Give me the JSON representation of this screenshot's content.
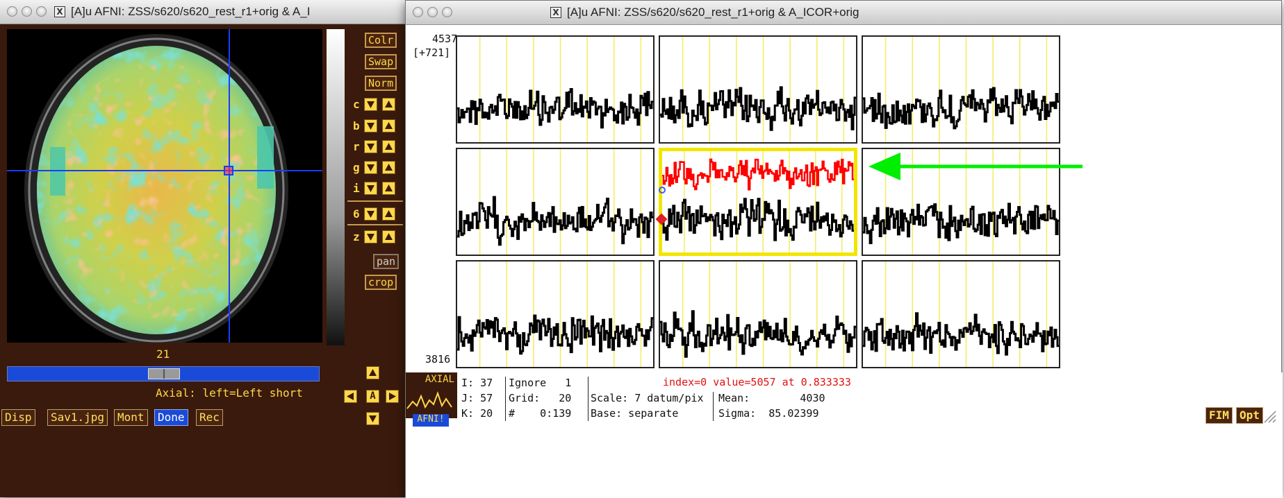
{
  "image_window": {
    "title": "[A]u AFNI: ZSS/s620/s620_rest_r1+orig & A_I",
    "colorbar_buttons": [
      "Colr",
      "Swap",
      "Norm"
    ],
    "adjust_rows": [
      {
        "letter": "c"
      },
      {
        "letter": "b"
      },
      {
        "letter": "r"
      },
      {
        "letter": "g"
      },
      {
        "letter": "i"
      },
      {
        "letter": "6"
      },
      {
        "letter": "z"
      }
    ],
    "pan_label": "pan",
    "crop_label": "crop",
    "slice_number": "21",
    "slider_fraction": 0.5,
    "orientation_text": "Axial: left=Left short",
    "bottom_buttons": [
      "Disp",
      "Sav1.jpg",
      "Mont",
      "Done",
      "Rec"
    ],
    "active_bottom_button": "Done",
    "nav_center": "A"
  },
  "graph_window": {
    "title": "[A]u AFNI: ZSS/s620/s620_rest_r1+orig & A_ICOR+orig",
    "y_top": "4537",
    "y_range": "[+721]",
    "y_bottom": "3816",
    "axial_label": "AXIAL",
    "afni_label": "AFNI!",
    "status": {
      "i": "I: 37",
      "j": "J: 57",
      "k": "K: 20",
      "ignore": "Ignore   1",
      "grid": "Grid:   20",
      "count": "#    0:139",
      "scale": "Scale: 7 datum/pix",
      "base": "Base: separate",
      "mean": "Mean:        4030",
      "sigma": "Sigma:  85.02399",
      "index_value": "index=0 value=5057 at 0.833333"
    },
    "fim_button": "FIM",
    "opt_button": "Opt"
  },
  "colors": {
    "afni_bg": "#3a1a0c",
    "afni_yellow": "#ffd84a",
    "highlight_frame": "#f2e600",
    "ref_curve": "#ff0000",
    "arrow": "#00ee00",
    "crosshair": "#1a3cff"
  },
  "icons": [
    "close-button",
    "minimize-button",
    "zoom-button",
    "x11-icon",
    "arrow-up-icon",
    "arrow-down-icon",
    "arrow-left-icon",
    "arrow-right-icon",
    "resize-grip-icon"
  ]
}
